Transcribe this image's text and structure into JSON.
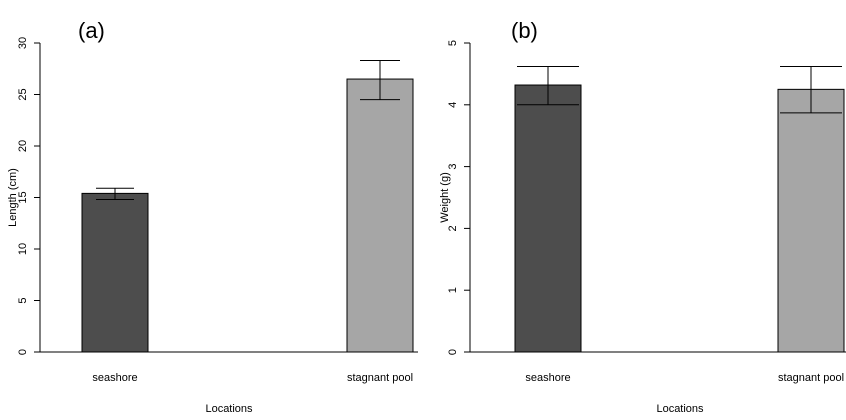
{
  "chart_data": [
    {
      "type": "bar",
      "panel_label": "(a)",
      "categories": [
        "seashore",
        "stagnant pool"
      ],
      "values": [
        15.4,
        26.5
      ],
      "error_low": [
        14.8,
        24.5
      ],
      "error_high": [
        15.9,
        28.3
      ],
      "bar_colors": [
        "#4d4d4d",
        "#a6a6a6"
      ],
      "xlabel": "Locations",
      "ylabel": "Length (cm)",
      "ylim": [
        0,
        30
      ],
      "yticks": [
        0,
        5,
        10,
        15,
        20,
        25,
        30
      ],
      "grid": false,
      "legend": "none"
    },
    {
      "type": "bar",
      "panel_label": "(b)",
      "categories": [
        "seashore",
        "stagnant pool"
      ],
      "values": [
        4.32,
        4.25
      ],
      "error_low": [
        4.0,
        3.87
      ],
      "error_high": [
        4.62,
        4.62
      ],
      "bar_colors": [
        "#4d4d4d",
        "#a6a6a6"
      ],
      "xlabel": "Locations",
      "ylabel": "Weight (g)",
      "ylim": [
        0,
        5
      ],
      "yticks": [
        0,
        1,
        2,
        3,
        4,
        5
      ],
      "grid": false,
      "legend": "none"
    }
  ]
}
